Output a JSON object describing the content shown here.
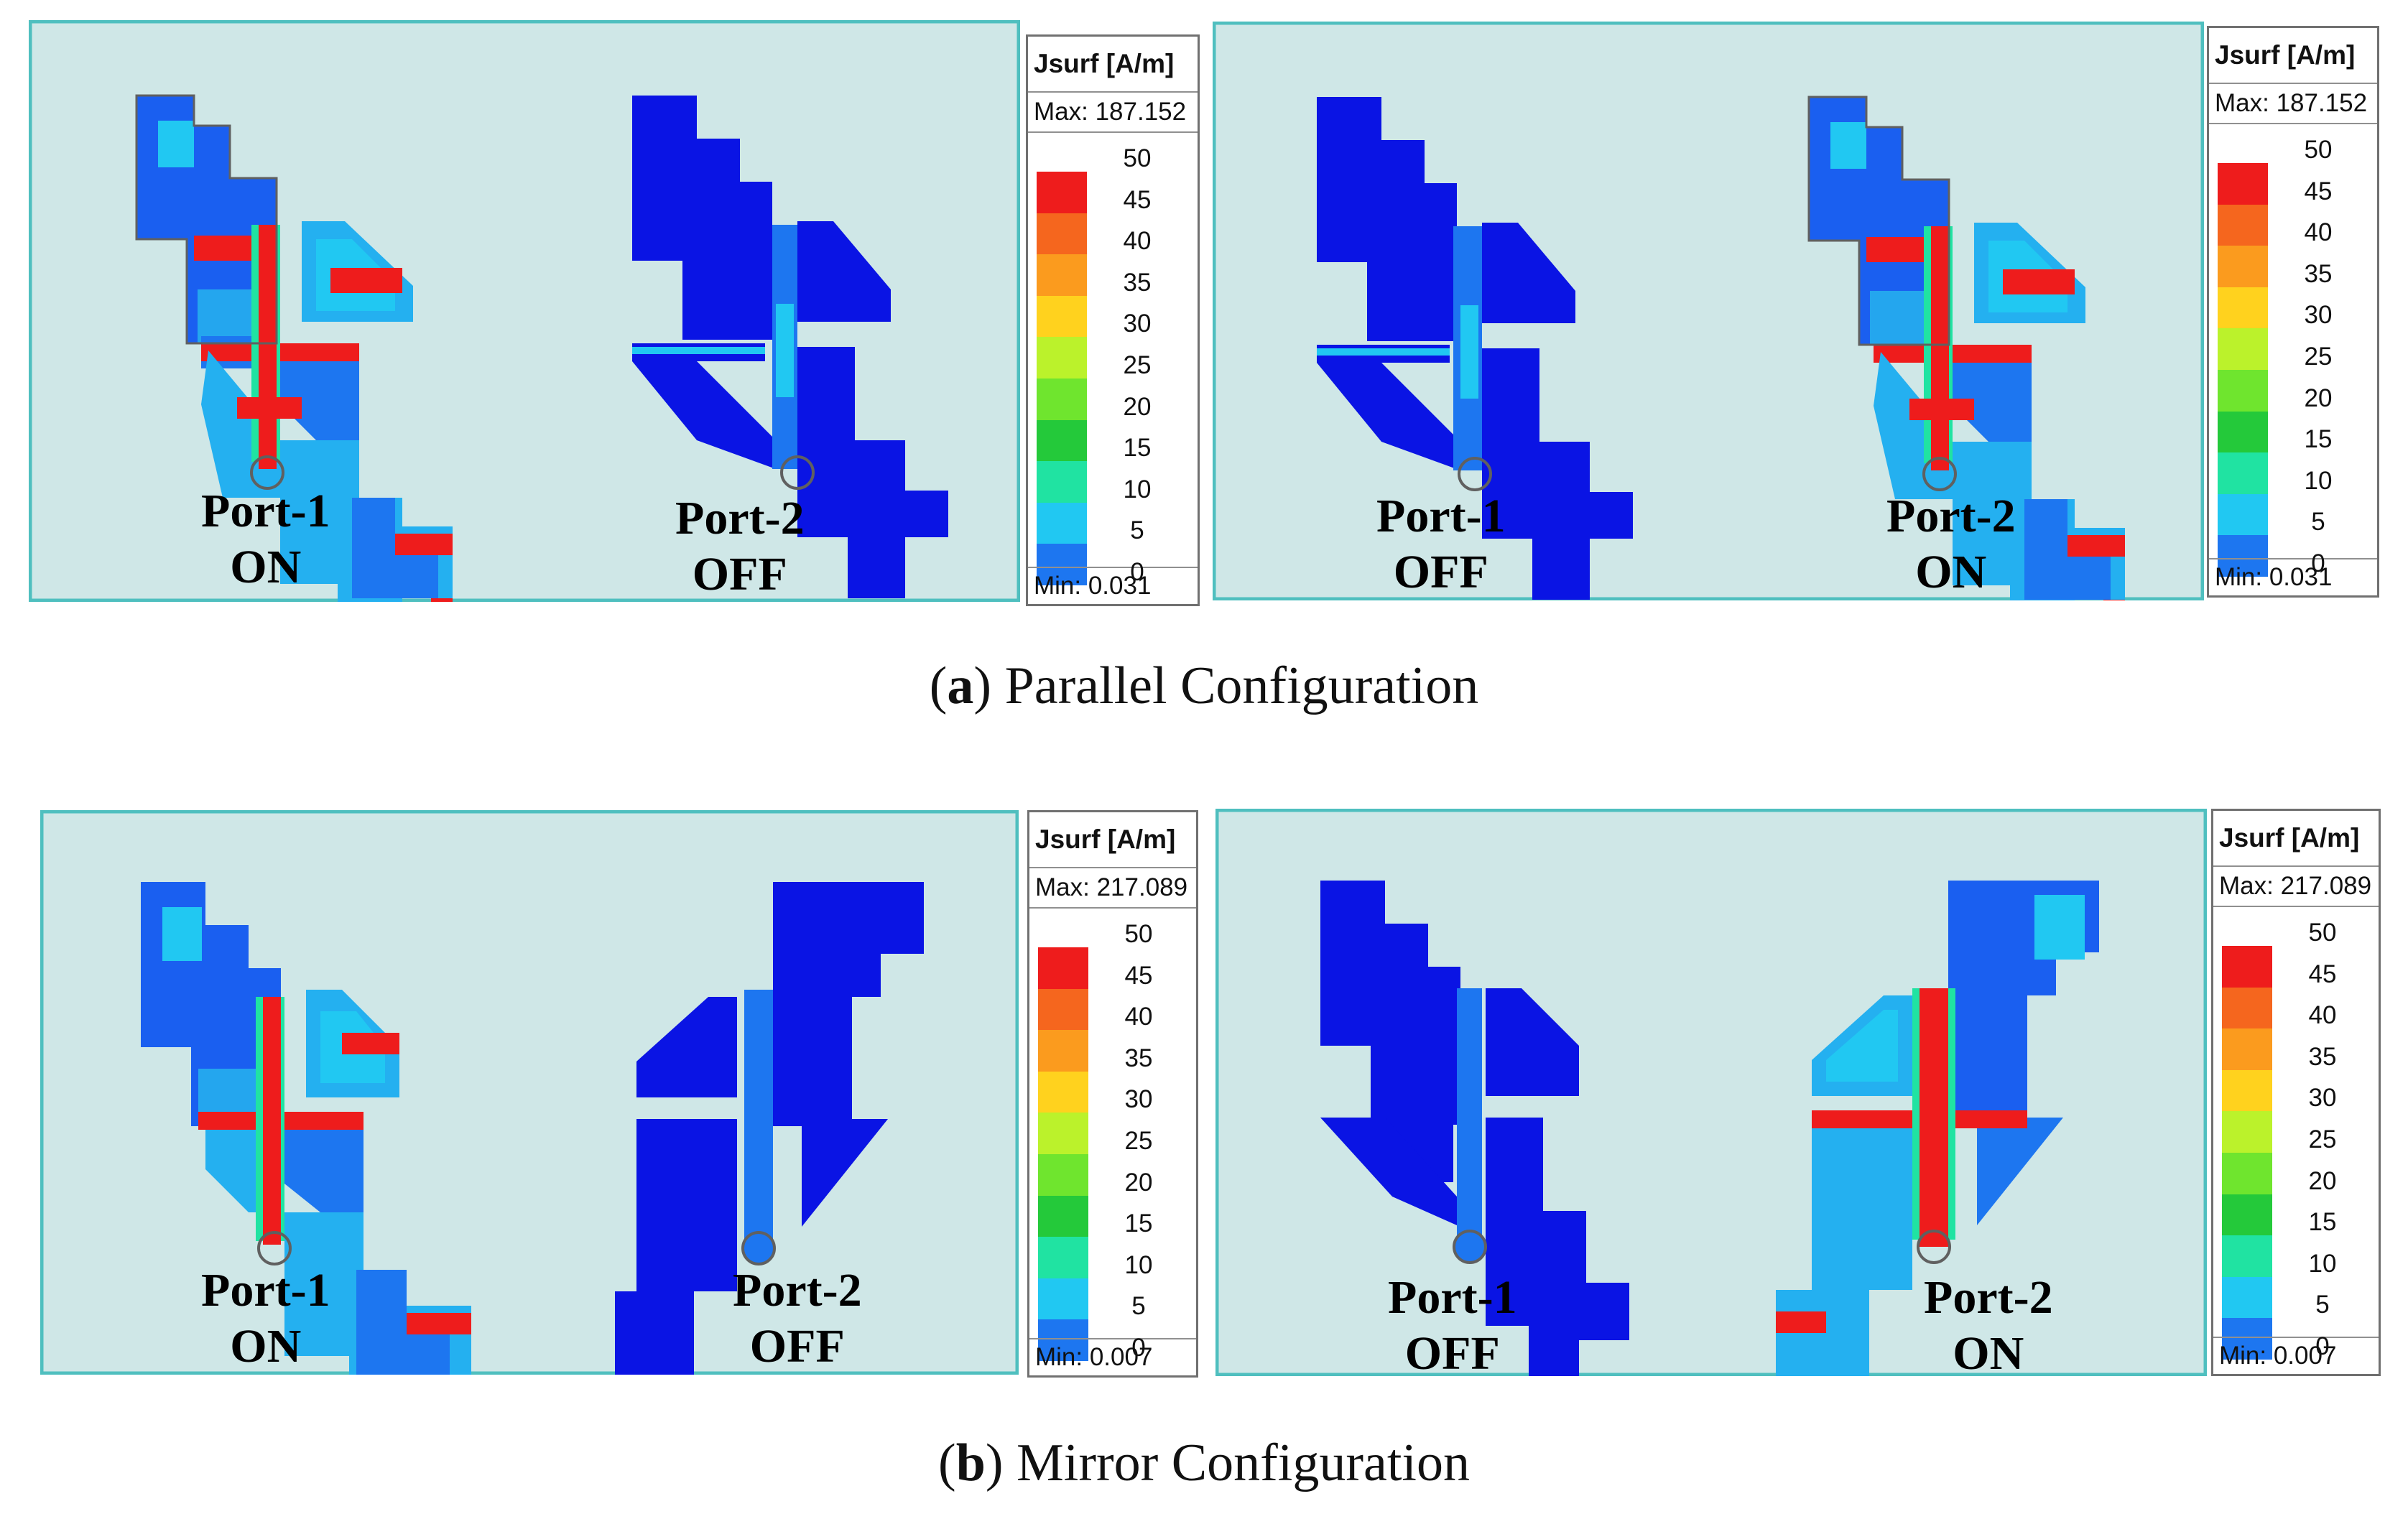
{
  "legend": {
    "title": "Jsurf [A/m]",
    "ticks": [
      "50",
      "45",
      "40",
      "35",
      "30",
      "25",
      "20",
      "15",
      "10",
      "5",
      "0"
    ],
    "colors": [
      "#ee1c1c",
      "#f5661e",
      "#fb9b1e",
      "#ffd21e",
      "#bbf22b",
      "#6fe52e",
      "#24c93a",
      "#20e3a2",
      "#21c8f2",
      "#1d76f0",
      "#0a14e4"
    ]
  },
  "figure_a": {
    "caption_letter": "a",
    "caption_text": "Parallel Configuration",
    "legend_max": "Max: 187.152",
    "legend_min": "Min:  0.031",
    "left_panel": {
      "port1": {
        "name": "Port-1",
        "state": "ON"
      },
      "port2": {
        "name": "Port-2",
        "state": "OFF"
      }
    },
    "right_panel": {
      "port1": {
        "name": "Port-1",
        "state": "OFF"
      },
      "port2": {
        "name": "Port-2",
        "state": "ON"
      }
    }
  },
  "figure_b": {
    "caption_letter": "b",
    "caption_text": "Mirror Configuration",
    "legend_max": "Max: 217.089",
    "legend_min": "Min:  0.007",
    "left_panel": {
      "port1": {
        "name": "Port-1",
        "state": "ON"
      },
      "port2": {
        "name": "Port-2",
        "state": "OFF"
      }
    },
    "right_panel": {
      "port1": {
        "name": "Port-1",
        "state": "OFF"
      },
      "port2": {
        "name": "Port-2",
        "state": "ON"
      }
    }
  },
  "colors": {
    "panel_bg": "#cfe7e7",
    "panel_border": "#4fbfbf",
    "field_off": "#0a14e4",
    "field_hot": "#ee1c1c"
  }
}
